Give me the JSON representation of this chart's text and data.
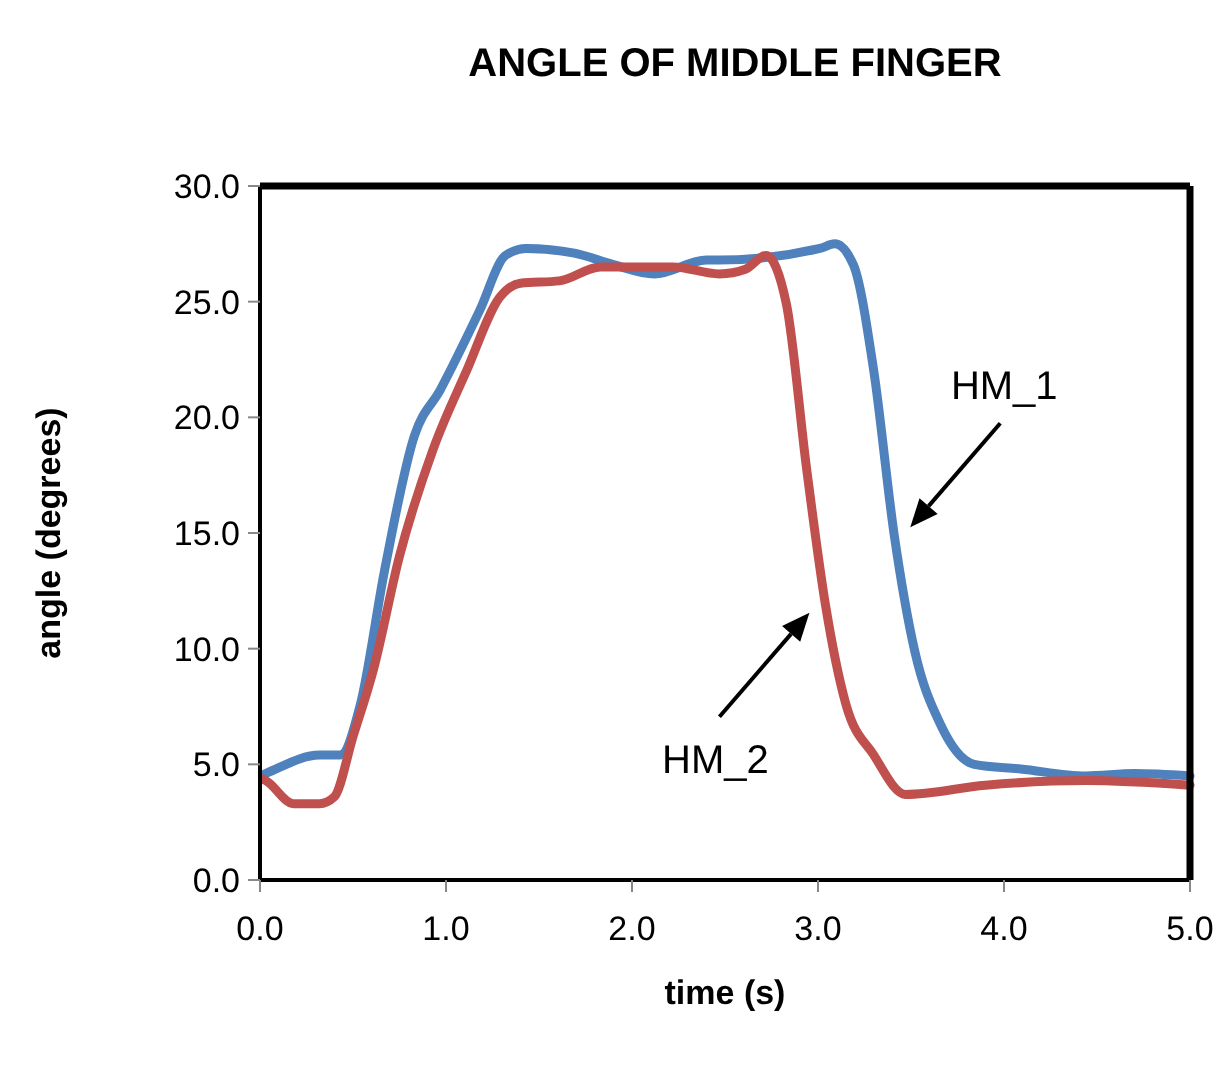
{
  "chart_data": {
    "type": "line",
    "title": "ANGLE OF MIDDLE FINGER",
    "xlabel": "time (s)",
    "ylabel": "angle (degrees)",
    "xlim": [
      0,
      5
    ],
    "xticks": [
      {
        "value": 0,
        "label": "0.0"
      },
      {
        "value": 1,
        "label": "1.0"
      },
      {
        "value": 2,
        "label": "2.0"
      },
      {
        "value": 3,
        "label": "3.0"
      },
      {
        "value": 4,
        "label": "4.0"
      },
      {
        "value": 5,
        "label": "5.0"
      }
    ],
    "ylim": [
      0,
      30
    ],
    "yticks": [
      {
        "value": 0,
        "label": "0.0"
      },
      {
        "value": 5,
        "label": "5.0"
      },
      {
        "value": 10,
        "label": "10.0"
      },
      {
        "value": 15,
        "label": "15.0"
      },
      {
        "value": 20,
        "label": "20.0"
      },
      {
        "value": 25,
        "label": "25.0"
      },
      {
        "value": 30,
        "label": "30.0"
      }
    ],
    "grid": false,
    "legend": false,
    "marker": "none",
    "line_style": "solid",
    "series": [
      {
        "name": "HM_1",
        "color": "#4f81bd",
        "x": [
          0,
          0.03,
          0.32,
          0.43,
          0.54,
          0.67,
          0.83,
          0.97,
          1.18,
          1.32,
          1.43,
          1.69,
          1.9,
          2.12,
          2.4,
          2.47,
          3.01,
          3.09,
          3.19,
          3.3,
          3.41,
          3.52,
          3.66,
          3.84,
          4.09,
          4.44,
          4.7,
          5
        ],
        "values": [
          4.5,
          4.6,
          5.4,
          5.4,
          7.6,
          13.4,
          19.2,
          21.2,
          24.6,
          27,
          27.3,
          27.1,
          26.6,
          26.2,
          26.8,
          26.8,
          27.3,
          27.5,
          26.6,
          22,
          14.9,
          9.9,
          6.7,
          5,
          4.8,
          4.5,
          4.6,
          4.5
        ]
      },
      {
        "name": "HM_2",
        "color": "#c0504d",
        "x": [
          0,
          0.03,
          0.18,
          0.32,
          0.4,
          0.5,
          0.61,
          0.75,
          0.93,
          1.11,
          1.29,
          1.4,
          1.61,
          1.83,
          2.22,
          2.47,
          2.61,
          2.72,
          2.83,
          2.94,
          3.04,
          3.15,
          3.3,
          3.47,
          3.9,
          4.44,
          5
        ],
        "values": [
          4.4,
          4.3,
          3.3,
          3.3,
          3.6,
          6.2,
          9.1,
          14,
          18.6,
          22,
          25.2,
          25.8,
          25.9,
          26.5,
          26.5,
          26.2,
          26.4,
          27,
          24.9,
          17.7,
          11.9,
          7.6,
          5.4,
          3.7,
          4.1,
          4.3,
          4.1
        ]
      }
    ]
  }
}
